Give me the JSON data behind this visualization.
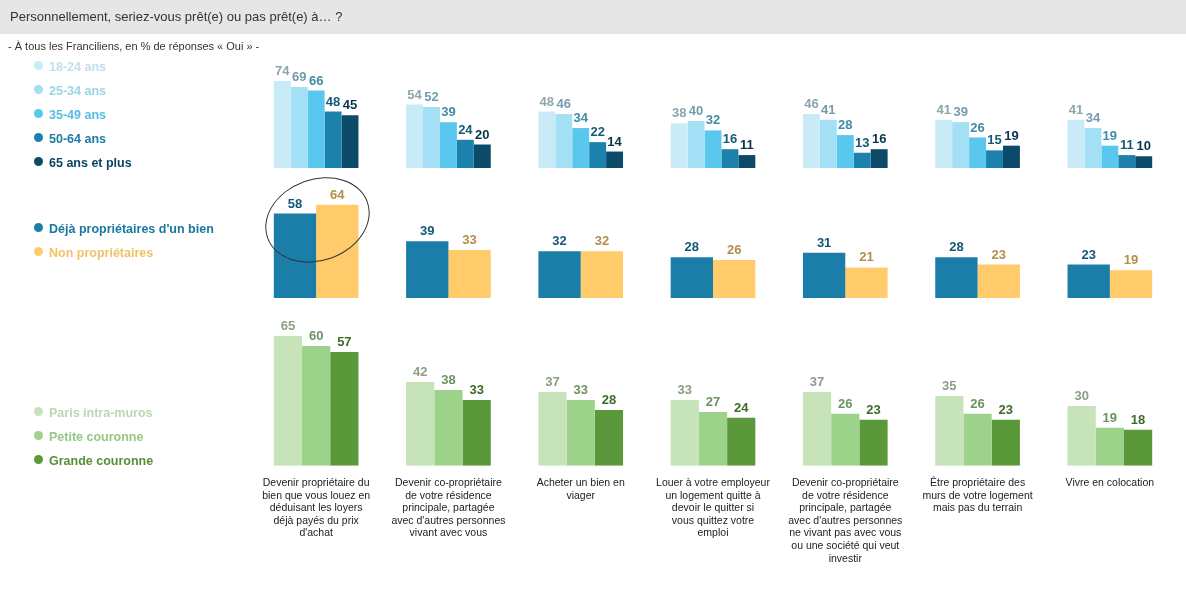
{
  "chart_data": [
    {
      "type": "bar",
      "title": "Personnellement, seriez-vous prêt(e) ou pas prêt(e) à… ?",
      "subtitle": "- À tous les Franciliens, en % de réponses « Oui » -",
      "categories": [
        null,
        null,
        null,
        null,
        null,
        null,
        null
      ],
      "series": [
        {
          "name": "18-24 ans",
          "color": "#c9ebf8",
          "values": [
            74,
            54,
            48,
            38,
            46,
            41,
            41
          ]
        },
        {
          "name": "25-34 ans",
          "color": "#a3dff5",
          "values": [
            69,
            52,
            46,
            40,
            41,
            39,
            34
          ]
        },
        {
          "name": "35-49 ans",
          "color": "#5ac8ee",
          "values": [
            66,
            39,
            34,
            32,
            28,
            26,
            19
          ]
        },
        {
          "name": "50-64 ans",
          "color": "#1c82ad",
          "values": [
            48,
            24,
            22,
            16,
            13,
            15,
            11
          ]
        },
        {
          "name": "65 ans et plus",
          "color": "#0b4a68",
          "values": [
            45,
            20,
            14,
            11,
            16,
            19,
            10
          ]
        }
      ],
      "data_labels": true,
      "legend": "left",
      "tick_labels": false
    },
    {
      "type": "bar",
      "categories": [
        null,
        null,
        null,
        null,
        null,
        null,
        null
      ],
      "series": [
        {
          "name": "Déjà propriétaires d'un bien",
          "color": "#1b7ea8",
          "values": [
            58,
            39,
            32,
            28,
            31,
            28,
            23
          ]
        },
        {
          "name": "Non propriétaires",
          "color": "#ffcb6b",
          "values": [
            64,
            33,
            32,
            26,
            21,
            23,
            19
          ]
        }
      ],
      "data_labels": true,
      "legend": "left",
      "tick_labels": false
    },
    {
      "type": "bar",
      "categories": [
        "Devenir propriétaire du bien que vous louez en déduisant les loyers déjà payés du prix d'achat",
        "Devenir co-propriétaire de votre résidence principale, partagée avec d'autres personnes vivant avec vous",
        "Acheter un bien en viager",
        "Louer à votre employeur un logement quitte à devoir le quitter si vous quittez votre emploi",
        "Devenir co-propriétaire de votre résidence principale, partagée avec d'autres personnes ne vivant pas avec vous ou une société qui veut investir",
        "Être propriétaire des murs de votre logement mais pas du terrain",
        "Vivre en colocation"
      ],
      "series": [
        {
          "name": "Paris intra-muros",
          "color": "#c6e3b9",
          "values": [
            65,
            42,
            37,
            33,
            37,
            35,
            30
          ]
        },
        {
          "name": "Petite couronne",
          "color": "#9dd28b",
          "values": [
            60,
            38,
            33,
            27,
            26,
            26,
            19
          ]
        },
        {
          "name": "Grande couronne",
          "color": "#5a983a",
          "values": [
            57,
            33,
            28,
            24,
            23,
            23,
            18
          ]
        }
      ],
      "data_labels": true,
      "legend": "left",
      "tick_labels": "x"
    }
  ]
}
